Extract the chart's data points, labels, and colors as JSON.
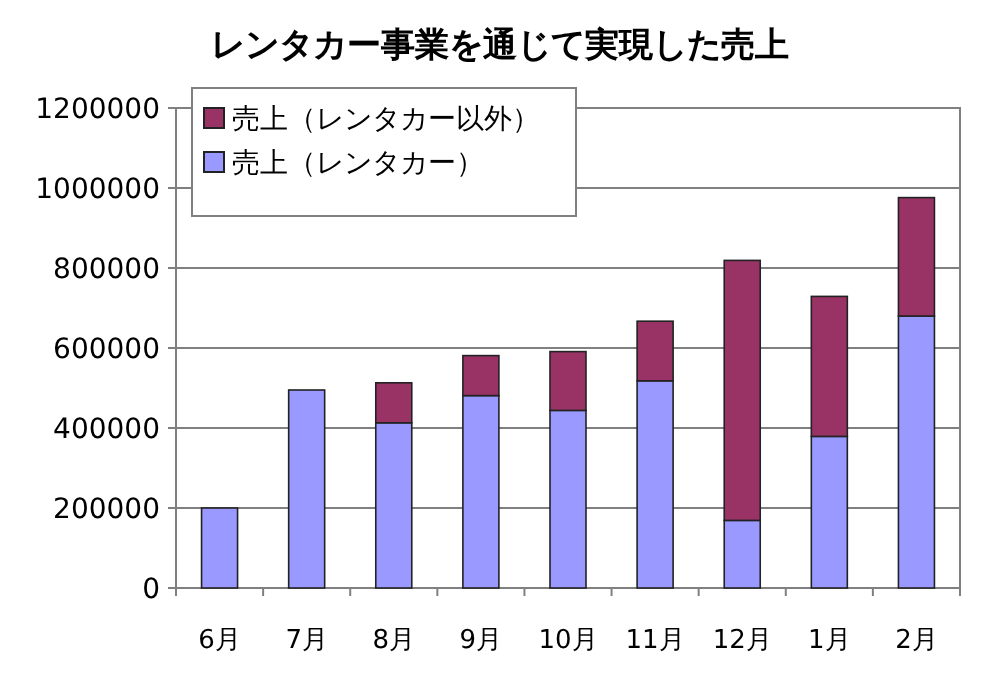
{
  "chart_data": {
    "type": "bar",
    "title": "レンタカー事業を通じて実現した売上",
    "categories": [
      "6月",
      "7月",
      "8月",
      "9月",
      "10月",
      "11月",
      "12月",
      "1月",
      "2月"
    ],
    "stacked": true,
    "series": [
      {
        "name": "売上（レンタカー）",
        "color": "#9999ff",
        "values": [
          200000,
          495000,
          413000,
          481000,
          444000,
          518000,
          169000,
          379000,
          680000
        ]
      },
      {
        "name": "売上（レンタカー以外）",
        "color": "#993366",
        "values": [
          null,
          null,
          100000,
          100000,
          147000,
          149000,
          650000,
          350000,
          296000
        ]
      }
    ],
    "ylim": [
      0,
      1200000
    ],
    "yticks": [
      0,
      200000,
      400000,
      600000,
      800000,
      1000000,
      1200000
    ],
    "grid": "y",
    "legend": "top left"
  }
}
